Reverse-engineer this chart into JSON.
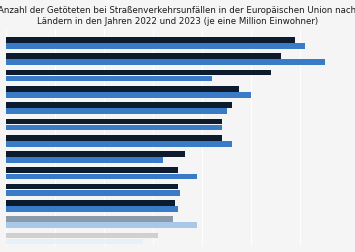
{
  "title": "Anzahl der Getöteten bei Straßenverkehrsunfällen in der Europäischen Union nach\nLändern in den Jahren 2022 und 2023 (je eine Million Einwohner)",
  "title_fontsize": 6.2,
  "background_color": "#f5f5f5",
  "plot_background": "#f5f5f5",
  "bar_color_2022": "#0d1b2e",
  "bar_color_2023": "#3a7bc8",
  "colors_2022": [
    "#0d1b2e",
    "#0d1b2e",
    "#0d1b2e",
    "#0d1b2e",
    "#0d1b2e",
    "#0d1b2e",
    "#0d1b2e",
    "#0d1b2e",
    "#0d1b2e",
    "#0d1b2e",
    "#0d1b2e",
    "#8a9aaa",
    "#d0d0d0"
  ],
  "colors_2023": [
    "#3a7bc8",
    "#3a7bc8",
    "#3a7bc8",
    "#3a7bc8",
    "#3a7bc8",
    "#3a7bc8",
    "#3a7bc8",
    "#3a7bc8",
    "#3a7bc8",
    "#3a7bc8",
    "#3a7bc8",
    "#a8c8e8",
    "#e8f0f8"
  ],
  "values_2022": [
    118,
    112,
    108,
    95,
    92,
    88,
    88,
    73,
    70,
    70,
    69,
    68,
    62
  ],
  "values_2023": [
    122,
    130,
    84,
    100,
    90,
    88,
    92,
    64,
    78,
    71,
    70,
    78,
    56
  ]
}
